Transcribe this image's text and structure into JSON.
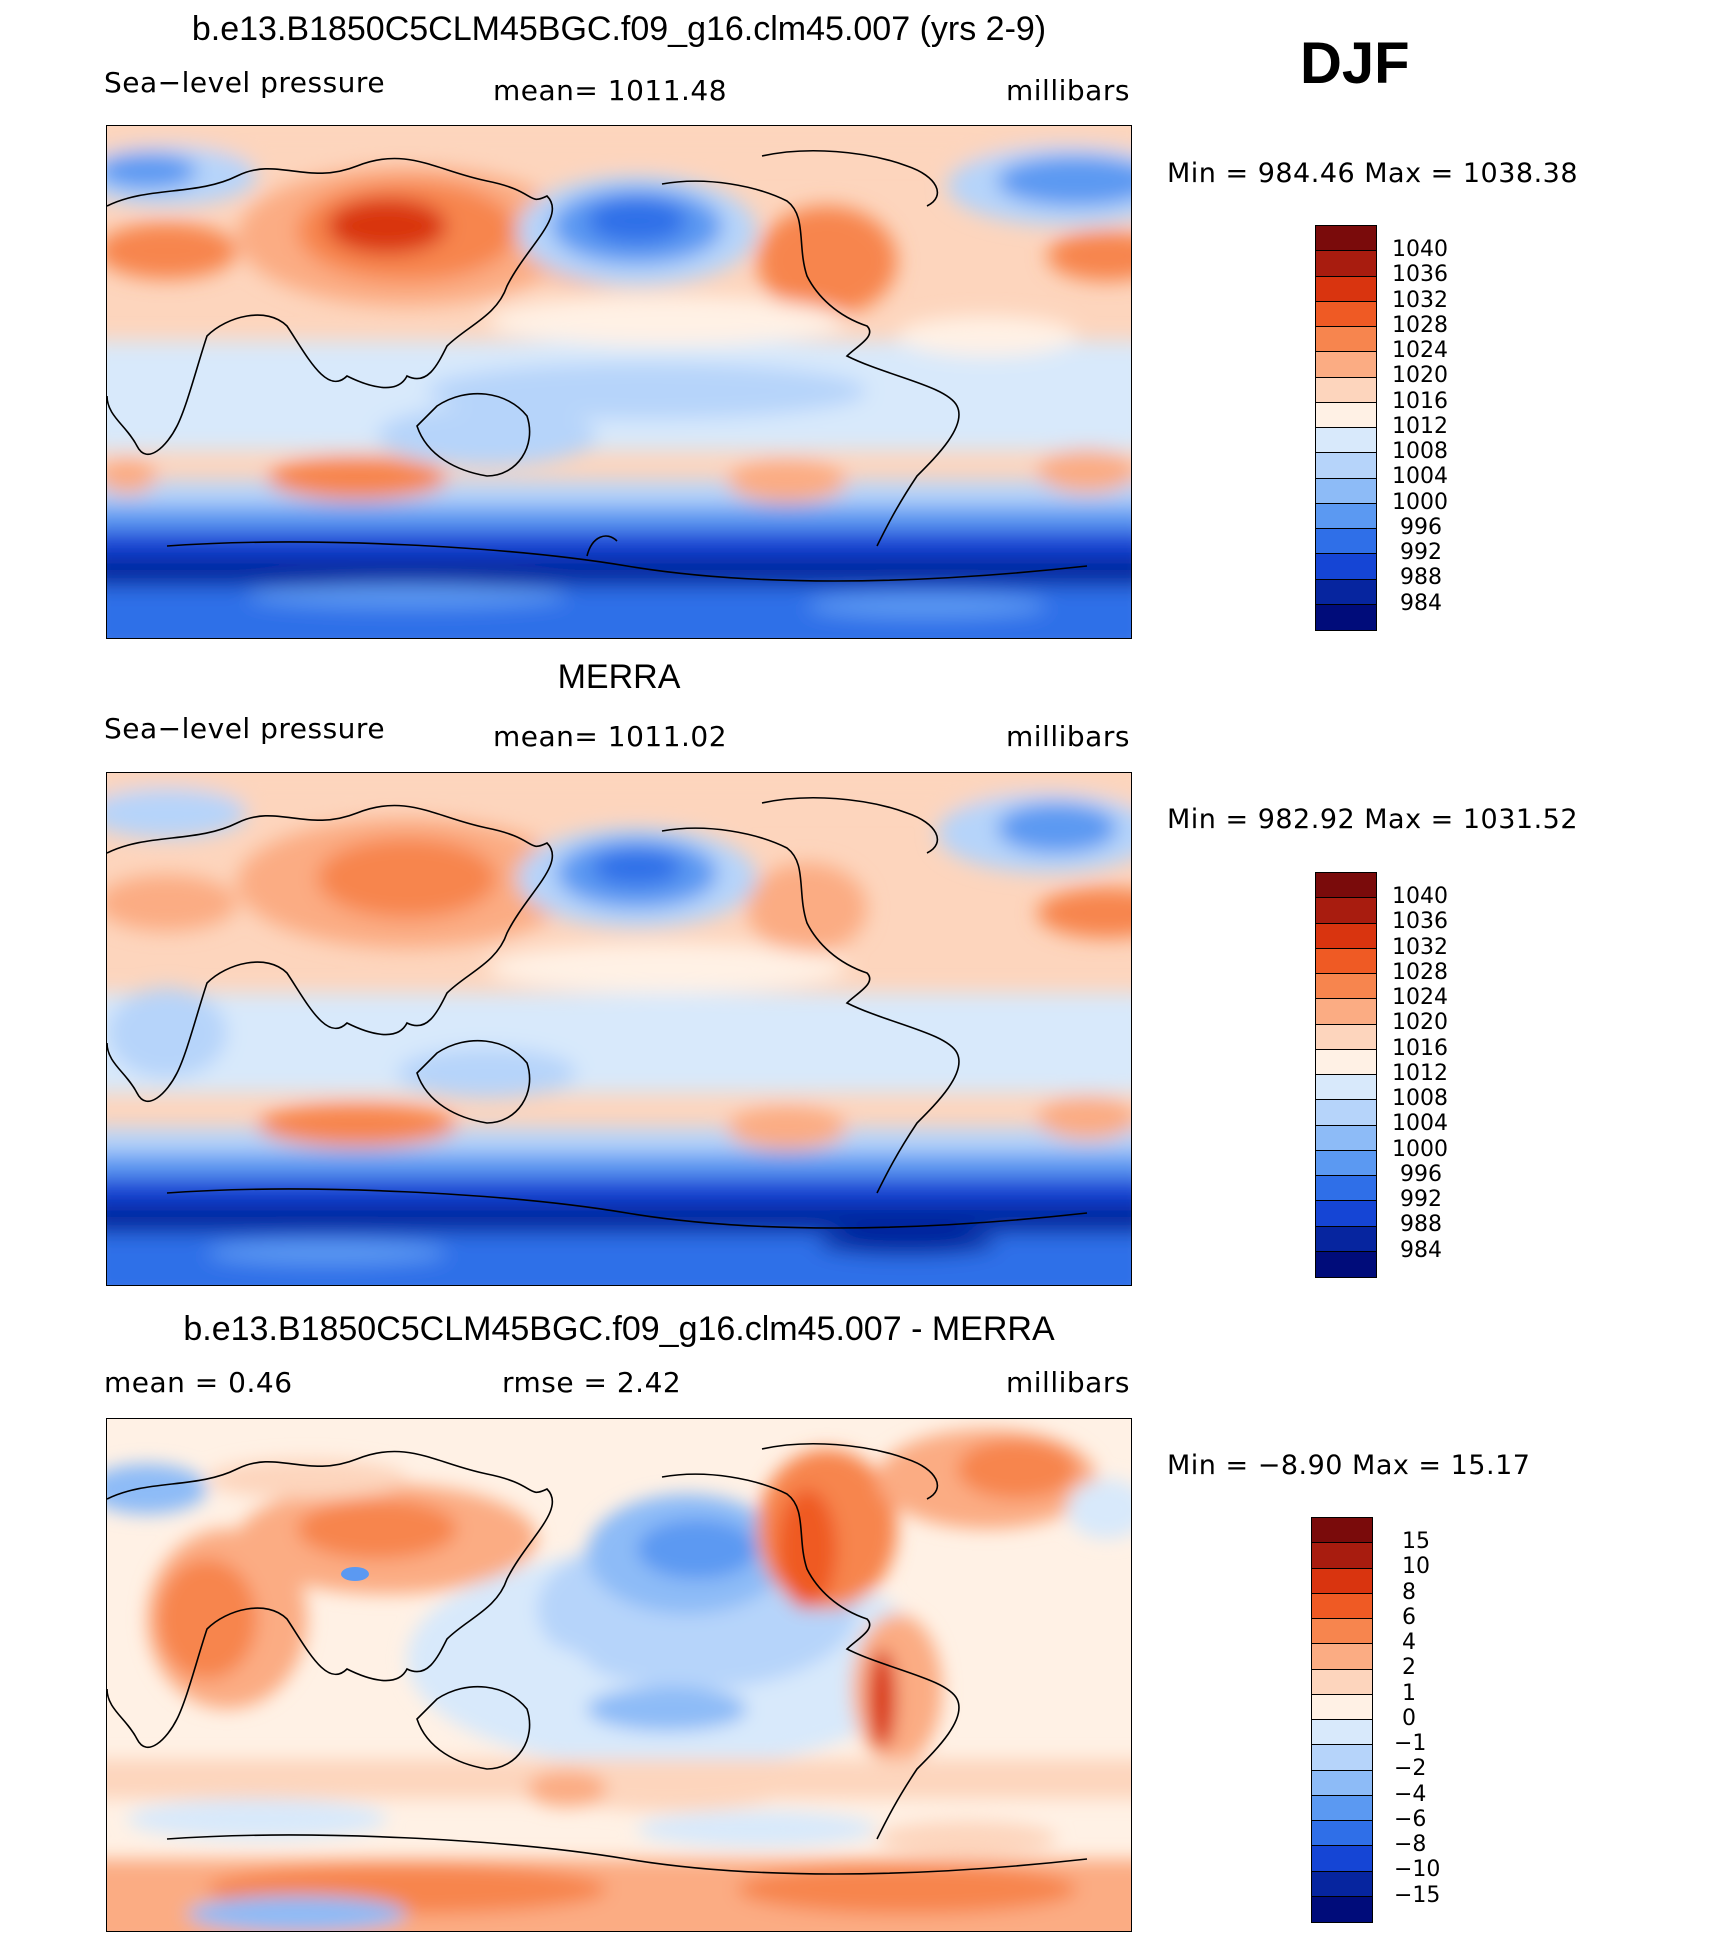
{
  "season": "DJF",
  "panels": [
    {
      "title": "b.e13.B1850C5CLM45BGC.f09_g16.clm45.007 (yrs 2-9)",
      "left_label": "Sea−level pressure",
      "center_label": "mean=  1011.48",
      "right_label": "millibars",
      "min_max": "Min  =  984.46  Max  =  1038.38",
      "colorbar_labels": [
        "1040",
        "1036",
        "1032",
        "1028",
        "1024",
        "1020",
        "1016",
        "1012",
        "1008",
        "1004",
        "1000",
        "996",
        "992",
        "988",
        "984"
      ],
      "colors": [
        "#7a0b0b",
        "#a81c0f",
        "#d9340f",
        "#ef5a24",
        "#f7854e",
        "#fbac83",
        "#fdd5bd",
        "#fff1e5",
        "#d8e9fb",
        "#b6d4fa",
        "#8dbbf7",
        "#5b99f2",
        "#2f6fe8",
        "#1545d5",
        "#06259f",
        "#000c7a"
      ]
    },
    {
      "title": "MERRA",
      "left_label": "Sea−level pressure",
      "center_label": "mean=  1011.02",
      "right_label": "millibars",
      "min_max": "Min  =  982.92  Max  =  1031.52",
      "colorbar_labels": [
        "1040",
        "1036",
        "1032",
        "1028",
        "1024",
        "1020",
        "1016",
        "1012",
        "1008",
        "1004",
        "1000",
        "996",
        "992",
        "988",
        "984"
      ],
      "colors": [
        "#7a0b0b",
        "#a81c0f",
        "#d9340f",
        "#ef5a24",
        "#f7854e",
        "#fbac83",
        "#fdd5bd",
        "#fff1e5",
        "#d8e9fb",
        "#b6d4fa",
        "#8dbbf7",
        "#5b99f2",
        "#2f6fe8",
        "#1545d5",
        "#06259f",
        "#000c7a"
      ]
    },
    {
      "title": "b.e13.B1850C5CLM45BGC.f09_g16.clm45.007 - MERRA",
      "left_label": "mean  =     0.46",
      "center_label": "rmse  =     2.42",
      "right_label": "millibars",
      "min_max": "Min  =   −8.90  Max  =    15.17",
      "colorbar_labels": [
        "15",
        "10",
        "8",
        "6",
        "4",
        "2",
        "1",
        "0",
        "−1",
        "−2",
        "−4",
        "−6",
        "−8",
        "−10",
        "−15"
      ],
      "colors": [
        "#7a0b0b",
        "#a81c0f",
        "#d9340f",
        "#ef5a24",
        "#f7854e",
        "#fbac83",
        "#fdd5bd",
        "#fff1e5",
        "#d8e9fb",
        "#b6d4fa",
        "#8dbbf7",
        "#5b99f2",
        "#2f6fe8",
        "#1545d5",
        "#06259f",
        "#000c7a"
      ]
    }
  ]
}
